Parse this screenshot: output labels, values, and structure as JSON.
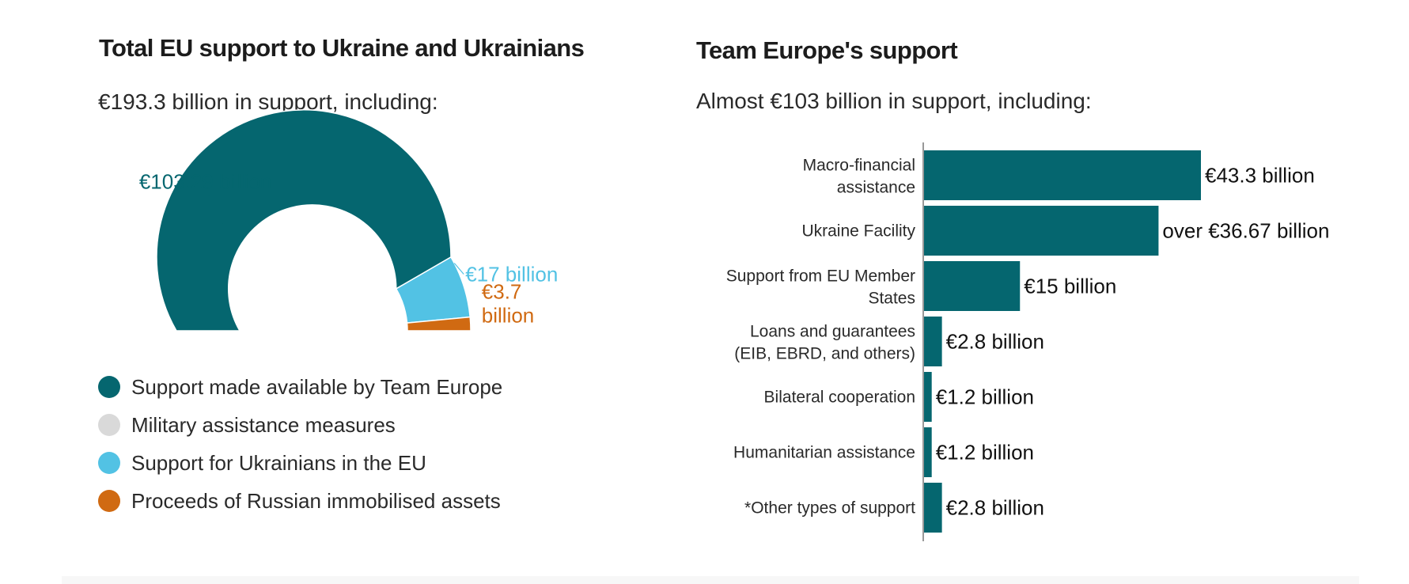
{
  "colors": {
    "team_europe": "#05666f",
    "military": "#d9d9d9",
    "ukrainians_eu": "#52c2e4",
    "russian_assets": "#d06a12",
    "bar": "#05666f",
    "text_dark": "#1f1f1f"
  },
  "left": {
    "title": "Total EU support to Ukraine and Ukrainians",
    "subtitle": "€193.3 billion in support, including:",
    "legend": [
      {
        "label": "Support made available by Team Europe",
        "color": "#05666f"
      },
      {
        "label": "Military assistance measures",
        "color": "#d9d9d9"
      },
      {
        "label": "Support for Ukrainians in the EU",
        "color": "#52c2e4"
      },
      {
        "label": "Proceeds of Russian immobilised assets",
        "color": "#d06a12"
      }
    ]
  },
  "right": {
    "title": "Team Europe's support",
    "subtitle": "Almost €103 billion in support, including:"
  },
  "chart_data": [
    {
      "type": "pie",
      "variant": "half-donut",
      "slices": [
        {
          "name": "Support made available by Team Europe",
          "value": 103.29,
          "label": "€103.29 billion",
          "color": "#05666f"
        },
        {
          "name": "Support for Ukrainians in the EU",
          "value": 17,
          "label": "€17 billion",
          "color": "#52c2e4"
        },
        {
          "name": "Proceeds of Russian immobilised assets",
          "value": 3.7,
          "label_lines": [
            "€3.7",
            "billion"
          ],
          "color": "#d06a12"
        }
      ],
      "legend_position": "bottom"
    },
    {
      "type": "bar",
      "orientation": "horizontal",
      "categories": [
        [
          "Macro-financial",
          "assistance"
        ],
        [
          "Ukraine Facility"
        ],
        [
          "Support from EU Member",
          "States"
        ],
        [
          "Loans and guarantees",
          "(EIB, EBRD, and others)"
        ],
        [
          "Bilateral cooperation"
        ],
        [
          "Humanitarian assistance"
        ],
        [
          "*Other types of support"
        ]
      ],
      "values": [
        43.3,
        36.67,
        15,
        2.8,
        1.2,
        1.2,
        2.8
      ],
      "value_labels": [
        "€43.3 billion",
        "over €36.67 billion",
        "€15 billion",
        "€2.8 billion",
        "€1.2 billion",
        "€1.2 billion",
        "€2.8 billion"
      ],
      "color": "#05666f"
    }
  ]
}
